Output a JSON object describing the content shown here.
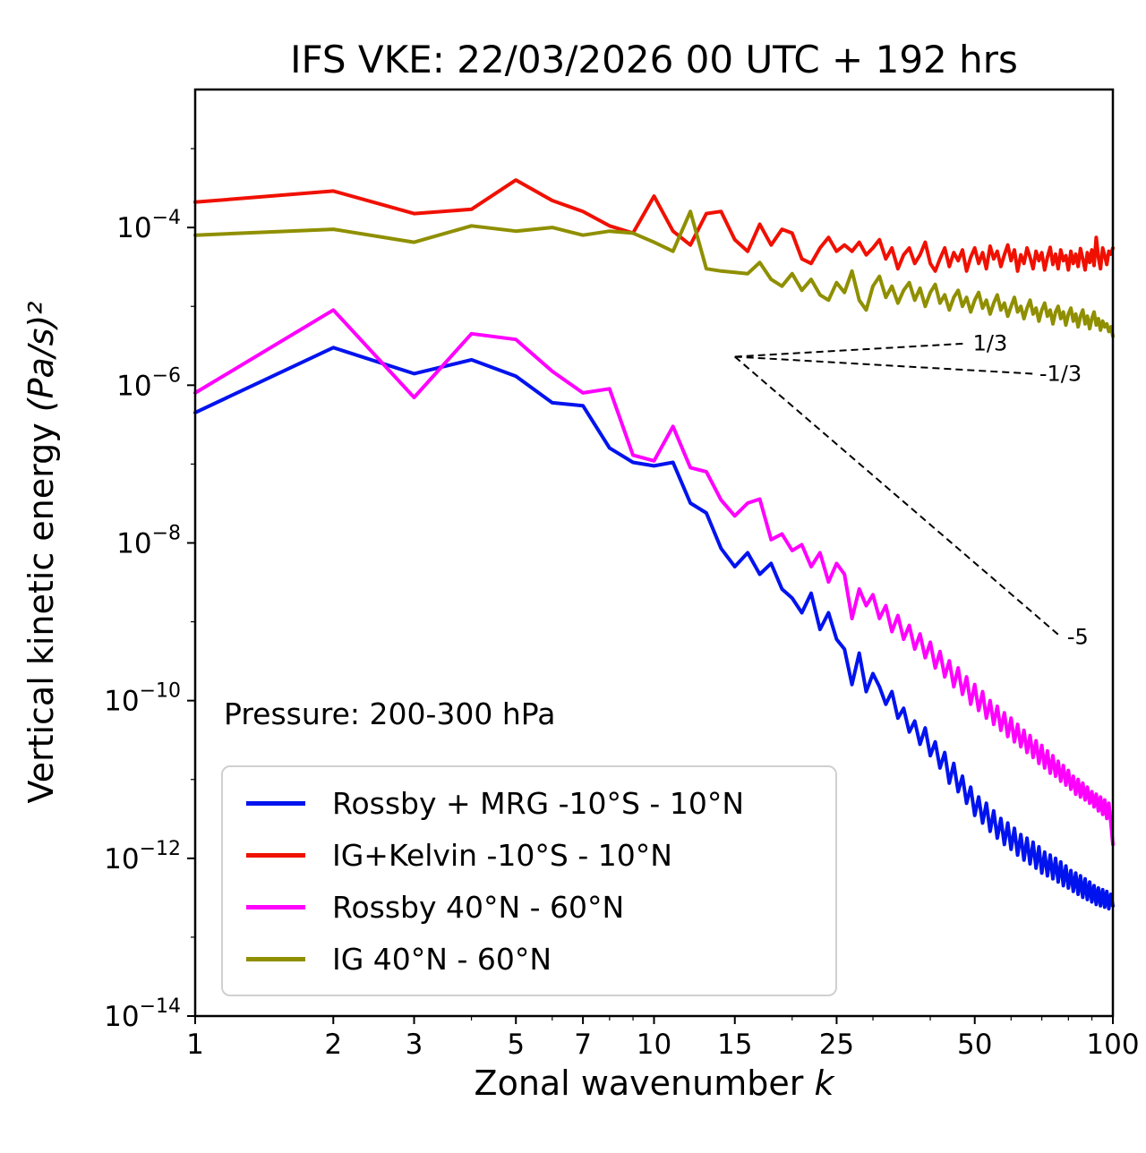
{
  "labels": {
    "title": "IFS VKE: 22/03/2026 00 UTC + 192 hrs",
    "ylabel_prefix": "Vertical kinetic energy ",
    "ylabel_math": "(Pa/s)²",
    "xlabel_prefix": "Zonal wavenumber ",
    "xlabel_var": "k",
    "annotation_pressure": "Pressure: 200-300 hPa"
  },
  "chart_data": {
    "type": "line",
    "title": "IFS VKE: 22/03/2026 00 UTC + 192 hrs",
    "xlabel": "Zonal wavenumber k",
    "ylabel": "Vertical kinetic energy (Pa/s)²",
    "xscale": "log",
    "yscale": "log",
    "xlim": [
      1,
      100
    ],
    "ylim_exponents": [
      -14,
      -2.25
    ],
    "xticks": [
      1,
      2,
      3,
      5,
      7,
      10,
      15,
      25,
      50,
      100
    ],
    "ytick_exponents": [
      -14,
      -12,
      -10,
      -8,
      -6,
      -4
    ],
    "grid": false,
    "legend_position": "lower left",
    "annotation": "Pressure: 200-300 hPa",
    "slope_guides": {
      "anchor": {
        "k": 15,
        "E": 2.3e-06
      },
      "guides": [
        {
          "slope": 0.3333,
          "k_end": 48,
          "label": "1/3"
        },
        {
          "slope": -0.3333,
          "k_end": 67,
          "label": "-1/3"
        },
        {
          "slope": -5,
          "k_end": 77,
          "label": "-5"
        }
      ]
    },
    "series": [
      {
        "name": "Rossby + MRG -10°S - 10°N",
        "color": "#0013ee",
        "k_start": 1,
        "values": [
          4.5e-07,
          3e-06,
          1.4e-06,
          2.1e-06,
          1.3e-06,
          6e-07,
          5.5e-07,
          1.6e-07,
          1.05e-07,
          9.5e-08,
          1.05e-07,
          3.2e-08,
          2.4e-08,
          8.5e-09,
          5e-09,
          7.5e-09,
          4e-09,
          5.5e-09,
          2.6e-09,
          2e-09,
          1.3e-09,
          2.3e-09,
          8e-10,
          1.3e-09,
          6e-10,
          4.5e-10,
          1.6e-10,
          4e-10,
          1.3e-10,
          2.2e-10,
          1.5e-10,
          9e-11,
          1.3e-10,
          6e-11,
          8e-11,
          4e-11,
          5.5e-11,
          2.8e-11,
          4.5e-11,
          2e-11,
          3e-11,
          1.4e-11,
          2.2e-11,
          9e-12,
          1.6e-11,
          7e-12,
          1.1e-11,
          5e-12,
          8e-12,
          3.5e-12,
          6e-12,
          2.8e-12,
          5e-12,
          2.2e-12,
          4e-12,
          1.8e-12,
          3.2e-12,
          1.5e-12,
          2.8e-12,
          1.3e-12,
          2.4e-12,
          1.1e-12,
          2e-12,
          9.5e-13,
          1.8e-12,
          8.5e-13,
          1.6e-12,
          7.5e-13,
          1.4e-12,
          6.5e-13,
          1.2e-12,
          6e-13,
          1.1e-12,
          5.5e-13,
          1e-12,
          5e-13,
          9e-13,
          4.5e-13,
          8e-13,
          4.2e-13,
          7e-13,
          3.8e-13,
          6.5e-13,
          3.5e-13,
          6e-13,
          3.2e-13,
          5.5e-13,
          3e-13,
          5e-13,
          2.8e-13,
          4.5e-13,
          2.6e-13,
          4.2e-13,
          2.5e-13,
          4e-13,
          2.4e-13,
          3.8e-13,
          2.3e-13,
          3.5e-13,
          2.5e-13
        ]
      },
      {
        "name": "IG+Kelvin -10°S - 10°N",
        "color": "#f01000",
        "k_start": 1,
        "values": [
          0.00021,
          0.00029,
          0.00015,
          0.00017,
          0.0004,
          0.00022,
          0.00016,
          0.000105,
          8.5e-05,
          0.00025,
          9e-05,
          6e-05,
          0.00015,
          0.00016,
          7e-05,
          5e-05,
          0.00011,
          6e-05,
          9.5e-05,
          8.5e-05,
          4e-05,
          3.5e-05,
          5.5e-05,
          7.5e-05,
          5e-05,
          6e-05,
          5e-05,
          6.5e-05,
          4.5e-05,
          5.5e-05,
          7e-05,
          4e-05,
          5.5e-05,
          3e-05,
          4.5e-05,
          5.5e-05,
          3.5e-05,
          4.5e-05,
          6.5e-05,
          3.5e-05,
          2.8e-05,
          4e-05,
          5.5e-05,
          3.2e-05,
          4.8e-05,
          3.8e-05,
          5.2e-05,
          2.8e-05,
          4.2e-05,
          5.5e-05,
          3.5e-05,
          4.8e-05,
          3e-05,
          5.8e-05,
          4e-05,
          5e-05,
          3.2e-05,
          4.5e-05,
          6e-05,
          3.8e-05,
          5.2e-05,
          2.8e-05,
          4.5e-05,
          3.5e-05,
          5.5e-05,
          4.2e-05,
          3e-05,
          5e-05,
          3.8e-05,
          4.8e-05,
          2.9e-05,
          4.2e-05,
          5.6e-05,
          3.4e-05,
          4.6e-05,
          3e-05,
          5.2e-05,
          3.8e-05,
          4.4e-05,
          2.9e-05,
          5e-05,
          3.5e-05,
          4.6e-05,
          3.2e-05,
          5.4e-05,
          4e-05,
          2.9e-05,
          4.8e-05,
          3.6e-05,
          5.2e-05,
          3.3e-05,
          7.5e-05,
          4.2e-05,
          3e-05,
          5.5e-05,
          4.4e-05,
          3.4e-05,
          5e-05,
          4.6e-05,
          5.5e-05
        ]
      },
      {
        "name": "Rossby 40°N - 60°N",
        "color": "#ff00ff",
        "k_start": 1,
        "values": [
          8e-07,
          9e-06,
          7e-07,
          4.5e-06,
          3.8e-06,
          1.5e-06,
          8e-07,
          9e-07,
          1.3e-07,
          1.1e-07,
          3e-07,
          9e-08,
          8e-08,
          3.5e-08,
          2.2e-08,
          3.2e-08,
          3.6e-08,
          1.1e-08,
          1.3e-08,
          8e-09,
          9.5e-09,
          5e-09,
          7.5e-09,
          3.2e-09,
          5.5e-09,
          4e-09,
          1.1e-09,
          2.6e-09,
          1.6e-09,
          2.2e-09,
          1.1e-09,
          1.6e-09,
          7.5e-10,
          1.2e-09,
          6e-10,
          9e-10,
          4.5e-10,
          7e-10,
          3.5e-10,
          5.5e-10,
          2.6e-10,
          4.2e-10,
          2e-10,
          3.2e-10,
          1.5e-10,
          2.6e-10,
          1.2e-10,
          2e-10,
          9e-11,
          1.6e-10,
          7.5e-11,
          1.3e-10,
          6e-11,
          1e-10,
          5e-11,
          8.5e-11,
          4.2e-11,
          7e-11,
          3.5e-11,
          6e-11,
          3e-11,
          5e-11,
          2.6e-11,
          4.2e-11,
          2.2e-11,
          3.6e-11,
          1.9e-11,
          3.1e-11,
          1.6e-11,
          2.7e-11,
          1.4e-11,
          2.3e-11,
          1.2e-11,
          2e-11,
          1.1e-11,
          1.7e-11,
          9.5e-12,
          1.5e-11,
          8.5e-12,
          1.3e-11,
          7.5e-12,
          1.1e-11,
          6.5e-12,
          1e-11,
          6e-12,
          9e-12,
          5.5e-12,
          8e-12,
          5e-12,
          7e-12,
          4.5e-12,
          6.5e-12,
          4e-12,
          6e-12,
          3.6e-12,
          5.5e-12,
          3.2e-12,
          5e-12,
          2.8e-12,
          1.5e-12
        ]
      },
      {
        "name": "IG 40°N - 60°N",
        "color": "#8f8f00",
        "k_start": 1,
        "values": [
          8e-05,
          9.5e-05,
          6.5e-05,
          0.000105,
          9e-05,
          0.0001,
          8e-05,
          9e-05,
          8.5e-05,
          6.5e-05,
          5e-05,
          0.00016,
          3e-05,
          2.8e-05,
          2.7e-05,
          2.6e-05,
          3.6e-05,
          2.2e-05,
          1.8e-05,
          2.6e-05,
          1.6e-05,
          2.2e-05,
          1.4e-05,
          1.2e-05,
          2e-05,
          1.5e-05,
          2.8e-05,
          1.2e-05,
          9e-06,
          1.8e-05,
          2.4e-05,
          1.3e-05,
          1.8e-05,
          1.1e-05,
          1.6e-05,
          2e-05,
          1.2e-05,
          1.7e-05,
          1e-05,
          1.5e-05,
          1.9e-05,
          1.1e-05,
          1.4e-05,
          9e-06,
          1.3e-05,
          1.6e-05,
          1e-05,
          1.3e-05,
          8.5e-06,
          1.2e-05,
          1.5e-05,
          9.5e-06,
          1.2e-05,
          8e-06,
          1.1e-05,
          1.4e-05,
          9e-06,
          1.1e-05,
          7.5e-06,
          1e-05,
          1.3e-05,
          8.5e-06,
          1e-05,
          7e-06,
          9.5e-06,
          1.2e-05,
          8e-06,
          9.5e-06,
          6.5e-06,
          9e-06,
          1.1e-05,
          7.5e-06,
          9e-06,
          6e-06,
          8.5e-06,
          1e-05,
          7e-06,
          8.5e-06,
          5.8e-06,
          8e-06,
          9.5e-06,
          6.5e-06,
          8e-06,
          5.5e-06,
          7.5e-06,
          9e-06,
          6e-06,
          7.5e-06,
          5.2e-06,
          7e-06,
          8.5e-06,
          5.8e-06,
          7e-06,
          5e-06,
          6.5e-06,
          5.5e-06,
          6e-06,
          4.8e-06,
          5.5e-06,
          4.2e-06
        ]
      }
    ]
  }
}
